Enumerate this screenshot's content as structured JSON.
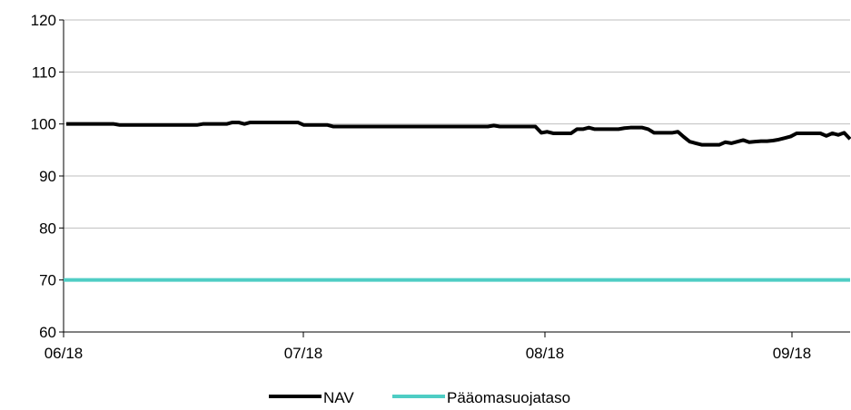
{
  "chart_data": {
    "type": "line",
    "title": "",
    "xlabel": "",
    "ylabel": "",
    "ylim": [
      60,
      120
    ],
    "y_ticks": [
      60,
      70,
      80,
      90,
      100,
      110,
      120
    ],
    "x_tick_labels": [
      "06/18",
      "07/18",
      "08/18",
      "09/18"
    ],
    "grid": "horizontal",
    "legend_position": "bottom",
    "series": [
      {
        "name": "NAV",
        "color": "#000000",
        "values": [
          100,
          100,
          100,
          100,
          100,
          100,
          100,
          100,
          100,
          99.8,
          99.8,
          99.8,
          99.8,
          99.8,
          99.8,
          99.8,
          99.8,
          99.8,
          99.8,
          99.8,
          99.8,
          99.8,
          99.8,
          100,
          100,
          100,
          100,
          100,
          100.3,
          100.3,
          100,
          100.3,
          100.3,
          100.3,
          100.3,
          100.3,
          100.3,
          100.3,
          100.3,
          100.3,
          99.8,
          99.8,
          99.8,
          99.8,
          99.8,
          99.5,
          99.5,
          99.5,
          99.5,
          99.5,
          99.5,
          99.5,
          99.5,
          99.5,
          99.5,
          99.5,
          99.5,
          99.5,
          99.5,
          99.5,
          99.5,
          99.5,
          99.5,
          99.5,
          99.5,
          99.5,
          99.5,
          99.5,
          99.5,
          99.5,
          99.5,
          99.5,
          99.7,
          99.5,
          99.5,
          99.5,
          99.5,
          99.5,
          99.5,
          99.5,
          98.3,
          98.5,
          98.2,
          98.2,
          98.2,
          98.2,
          99,
          99,
          99.3,
          99,
          99,
          99,
          99,
          99,
          99.2,
          99.3,
          99.3,
          99.3,
          99,
          98.3,
          98.3,
          98.3,
          98.3,
          98.5,
          97.5,
          96.6,
          96.3,
          96,
          96,
          96,
          96,
          96.5,
          96.3,
          96.6,
          96.9,
          96.5,
          96.6,
          96.7,
          96.7,
          96.8,
          97,
          97.3,
          97.6,
          98.2,
          98.2,
          98.2,
          98.2,
          98.2,
          97.7,
          98.2,
          97.9,
          98.3,
          97.1
        ]
      },
      {
        "name": "Pääomasuojataso",
        "color": "#4ecdc4",
        "values": [
          70,
          70
        ]
      }
    ]
  }
}
